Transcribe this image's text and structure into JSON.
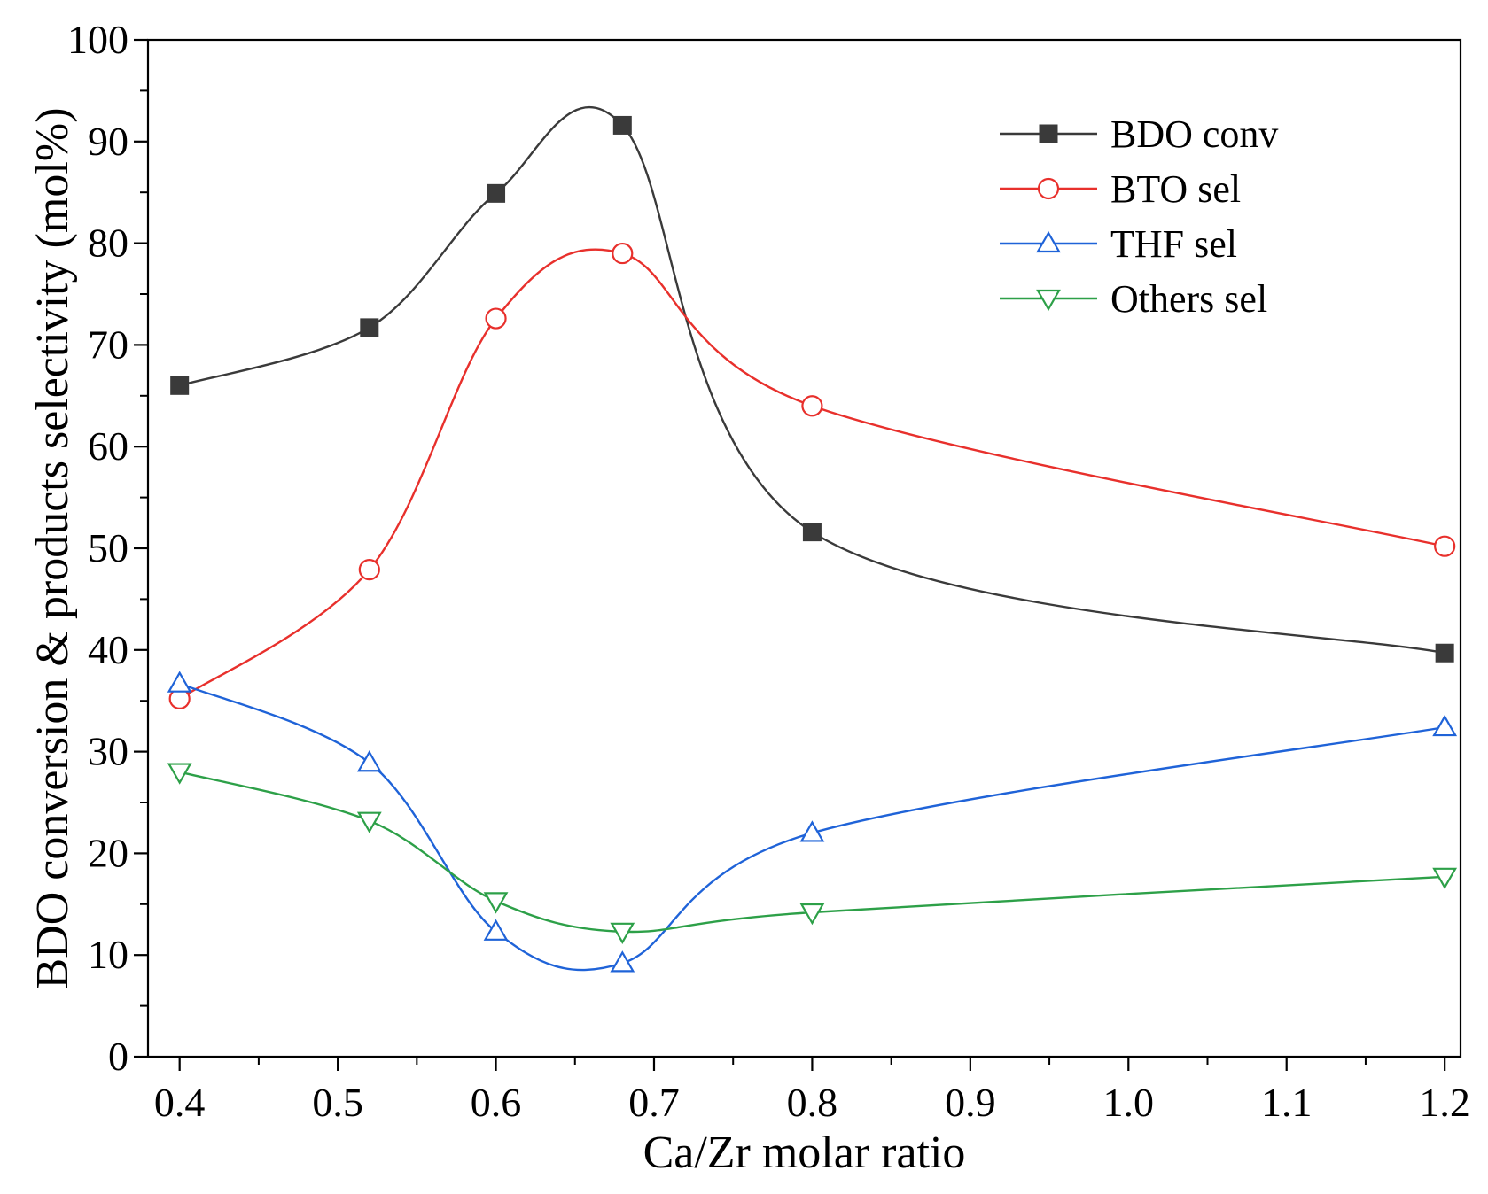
{
  "chart_data": {
    "type": "line",
    "xlabel": "Ca/Zr molar ratio",
    "ylabel": "BDO conversion & products selectivity (mol%)",
    "xlim": [
      0.38,
      1.21
    ],
    "ylim": [
      0,
      100
    ],
    "x_ticks": [
      "0.4",
      "0.5",
      "0.6",
      "0.7",
      "0.8",
      "0.9",
      "1.0",
      "1.1",
      "1.2"
    ],
    "y_ticks": [
      "0",
      "10",
      "20",
      "30",
      "40",
      "50",
      "60",
      "70",
      "80",
      "90",
      "100"
    ],
    "x": [
      0.4,
      0.52,
      0.6,
      0.68,
      0.8,
      1.2
    ],
    "grid": false,
    "legend_position": "top-right",
    "series": [
      {
        "name": "BDO conv",
        "color": "#3a3a3a",
        "marker": "filled-square",
        "values": [
          66.0,
          71.7,
          84.9,
          91.6,
          51.6,
          39.7
        ]
      },
      {
        "name": "BTO sel",
        "color": "#e8302c",
        "marker": "open-circle",
        "values": [
          35.2,
          47.9,
          72.6,
          79.0,
          64.0,
          50.2
        ]
      },
      {
        "name": "THF sel",
        "color": "#1f63d8",
        "marker": "open-triangle-up",
        "values": [
          36.7,
          28.9,
          12.3,
          9.2,
          22.0,
          32.4
        ]
      },
      {
        "name": "Others sel",
        "color": "#2da048",
        "marker": "open-triangle-down",
        "values": [
          28.0,
          23.2,
          15.3,
          12.3,
          14.2,
          17.7
        ]
      }
    ]
  }
}
